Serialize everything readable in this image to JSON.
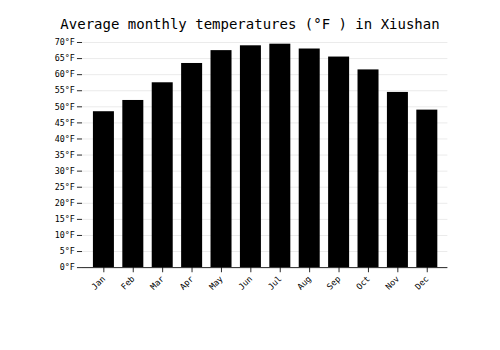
{
  "chart_data": {
    "type": "bar",
    "title": "Average monthly temperatures (°F ) in Xiushan",
    "categories": [
      "Jan",
      "Feb",
      "Mar",
      "Apr",
      "May",
      "Jun",
      "Jul",
      "Aug",
      "Sep",
      "Oct",
      "Nov",
      "Dec"
    ],
    "values": [
      48.5,
      52.0,
      57.5,
      63.5,
      67.5,
      69.0,
      69.5,
      68.0,
      65.5,
      61.5,
      54.5,
      49.0
    ],
    "ylim": [
      0,
      70
    ],
    "yticks": [
      {
        "value": 0,
        "label": "0°F"
      },
      {
        "value": 5,
        "label": "5°F"
      },
      {
        "value": 10,
        "label": "10°F"
      },
      {
        "value": 15,
        "label": "15°F"
      },
      {
        "value": 20,
        "label": "20°F"
      },
      {
        "value": 25,
        "label": "25°F"
      },
      {
        "value": 30,
        "label": "30°F"
      },
      {
        "value": 35,
        "label": "35°F"
      },
      {
        "value": 40,
        "label": "40°F"
      },
      {
        "value": 45,
        "label": "45°F"
      },
      {
        "value": 50,
        "label": "50°F"
      },
      {
        "value": 55,
        "label": "55°F"
      },
      {
        "value": 60,
        "label": "60°F"
      },
      {
        "value": 65,
        "label": "65°F"
      },
      {
        "value": 70,
        "label": "70°F"
      }
    ],
    "grid": true
  }
}
